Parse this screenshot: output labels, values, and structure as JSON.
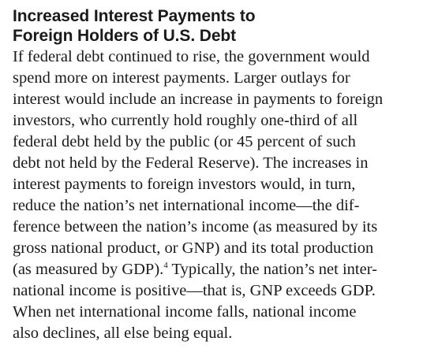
{
  "heading": {
    "lines": [
      "Increased Interest Payments to",
      "Foreign Holders of U.S. Debt"
    ]
  },
  "body": {
    "lines": [
      "If federal debt continued to rise, the government would",
      "spend more on interest payments. Larger outlays for",
      "interest would include an increase in payments to foreign",
      "investors, who currently hold roughly one-third of all",
      "federal debt held by the public (or 45 percent of such",
      "debt not held by the Federal Reserve). The increases in",
      "interest payments to foreign investors would, in turn,",
      "reduce the nation’s net international income—the dif-",
      "ference between the nation’s income (as measured by its",
      "gross national product, or GNP) and its total production",
      "(as measured by GDP).",
      " Typically, the nation’s net inter-",
      "national income is positive—that is, GNP exceeds GDP.",
      "When net international income falls, national income",
      "also declines, all else being equal."
    ],
    "footnote_ref": "4"
  }
}
